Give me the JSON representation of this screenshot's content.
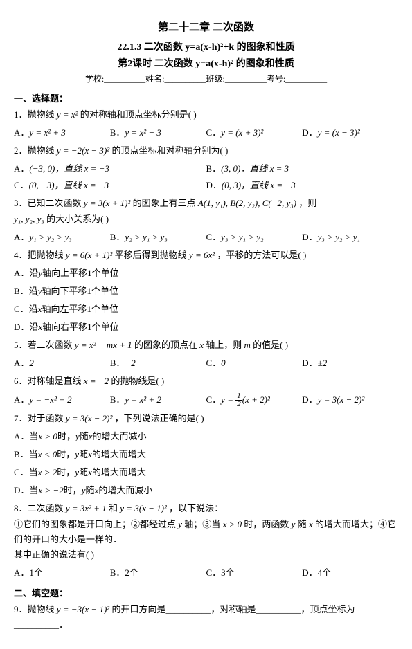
{
  "title": "第二十二章  二次函数",
  "subtitle": "22.1.3  二次函数 y=a(x-h)²+k 的图象和性质",
  "lesson": "第2课时  二次函数 y=a(x-h)² 的图象和性质",
  "timeinfo": "学校:__________姓名:__________班级:__________考号:__________",
  "sec1": "一、选择题：",
  "q1_stem": "1．抛物线",
  "q1_f": "y = x²",
  "q1_tail": "的对称轴和顶点坐标分别是(    )",
  "q1a_p": "A．",
  "q1a": "y = x² + 3",
  "q1b_p": "B．",
  "q1b": "y = x² − 3",
  "q1c_p": "C．",
  "q1c": "y = (x + 3)²",
  "q1d_p": "D．",
  "q1d": "y = (x − 3)²",
  "q2_stem": "2．抛物线",
  "q2_f": "y = −2(x − 3)²",
  "q2_tail": "的顶点坐标和对称轴分别为(    )",
  "q2a_p": "A．",
  "q2a": "(−3, 0)，直线 x = −3",
  "q2b_p": "B．",
  "q2b": "(3, 0)，直线 x = 3",
  "q2c_p": "C．",
  "q2c": "(0, −3)，直线 x = −3",
  "q2d_p": "D．",
  "q2d": "(0, 3)，直线 x = −3",
  "q3_stem": "3．已知二次函数",
  "q3_f": "y = 3(x + 1)²",
  "q3_mid": "的图象上有三点",
  "q3_pts": "A(1, y₁), B(2, y₂), C(−2, y₃)",
  "q3_tail": "，则",
  "q3_vars": "y₁, y₂, y₃",
  "q3_tail2": "的大小关系为(    )",
  "q3a_p": "A．",
  "q3a": "y₁ > y₂ > y₃",
  "q3b_p": "B．",
  "q3b": "y₂ > y₁ > y₃",
  "q3c_p": "C．",
  "q3c": "y₃ > y₁ > y₂",
  "q3d_p": "D．",
  "q3d": "y₃ > y₂ > y₁",
  "q4_stem": "4．把抛物线",
  "q4_f": "y = 6(x + 1)²",
  "q4_mid": "平移后得到抛物线",
  "q4_f2": "y = 6x²",
  "q4_tail": "，平移的方法可以是(    )",
  "q4a_p": "A．沿",
  "q4a_ax": "y",
  "q4a_t": "轴向上平移1个单位",
  "q4b_p": "B．沿",
  "q4b_ax": "y",
  "q4b_t": "轴向下平移1个单位",
  "q4c_p": "C．沿",
  "q4c_ax": "x",
  "q4c_t": "轴向左平移1个单位",
  "q4d_p": "D．沿",
  "q4d_ax": "x",
  "q4d_t": "轴向右平移1个单位",
  "q5_stem": "5．若二次函数",
  "q5_f": "y = x² − mx + 1",
  "q5_mid": "的图象的顶点在",
  "q5_ax": "x",
  "q5_mid2": "轴上，则",
  "q5_var": "m",
  "q5_tail": "的值是(    )",
  "q5a_p": "A．",
  "q5a": "2",
  "q5b_p": "B．",
  "q5b": "−2",
  "q5c_p": "C．",
  "q5c": "0",
  "q5d_p": "D．",
  "q5d": "±2",
  "q6_stem": "6．对称轴是直线",
  "q6_f": "x = −2",
  "q6_tail": "的抛物线是(    )",
  "q6a_p": "A．",
  "q6a": "y = −x² + 2",
  "q6b_p": "B．",
  "q6b": "y = x² + 2",
  "q6c_p": "C．",
  "q6c_f": "(x + 2)²",
  "q6d_p": "D．",
  "q6d": "y = 3(x − 2)²",
  "q7_stem": "7．对于函数",
  "q7_f": "y = 3(x − 2)²",
  "q7_tail": "，下列说法正确的是(    )",
  "q7a_p": "A．当",
  "q7a_c": "x > 0",
  "q7a_m": "时，",
  "q7a_v": "y",
  "q7a_t": "随",
  "q7a_v2": "x",
  "q7a_t2": "的增大而减小",
  "q7b_p": "B．当",
  "q7b_c": "x < 0",
  "q7b_m": "时，",
  "q7b_v": "y",
  "q7b_t": "随",
  "q7b_v2": "x",
  "q7b_t2": "的增大而增大",
  "q7c_p": "C．当",
  "q7c_c": "x > 2",
  "q7c_m": "时，",
  "q7c_v": "y",
  "q7c_t": "随",
  "q7c_v2": "x",
  "q7c_t2": "的增大而增大",
  "q7d_p": "D．当",
  "q7d_c": "x > −2",
  "q7d_m": "时，",
  "q7d_v": "y",
  "q7d_t": "随",
  "q7d_v2": "x",
  "q7d_t2": "的增大而减小",
  "q8_stem": "8．二次函数",
  "q8_f1": "y = 3x² + 1",
  "q8_and": "和",
  "q8_f2": "y = 3(x − 1)²",
  "q8_tail": "，以下说法：",
  "q8_s1": "①它们的图象都是开口向上；②都经过点",
  "q8_pt": "y",
  "q8_s2": "轴；③当",
  "q8_c": "x > 0",
  "q8_s3": "时，两函数",
  "q8_v": "y",
  "q8_s4": "随",
  "q8_v2": "x",
  "q8_s5": "的增大而增大；④它们的开口的大小是一样的．",
  "q8_ask": "其中正确的说法有(    )",
  "q8a_p": "A．1个",
  "q8b_p": "B．2个",
  "q8c_p": "C．3个",
  "q8d_p": "D．4个",
  "sec2": "二、填空题：",
  "q9_stem": "9．抛物线",
  "q9_f": "y = −3(x − 1)²",
  "q9_tail": "的开口方向是__________，对称轴是__________，顶点坐标为__________．"
}
